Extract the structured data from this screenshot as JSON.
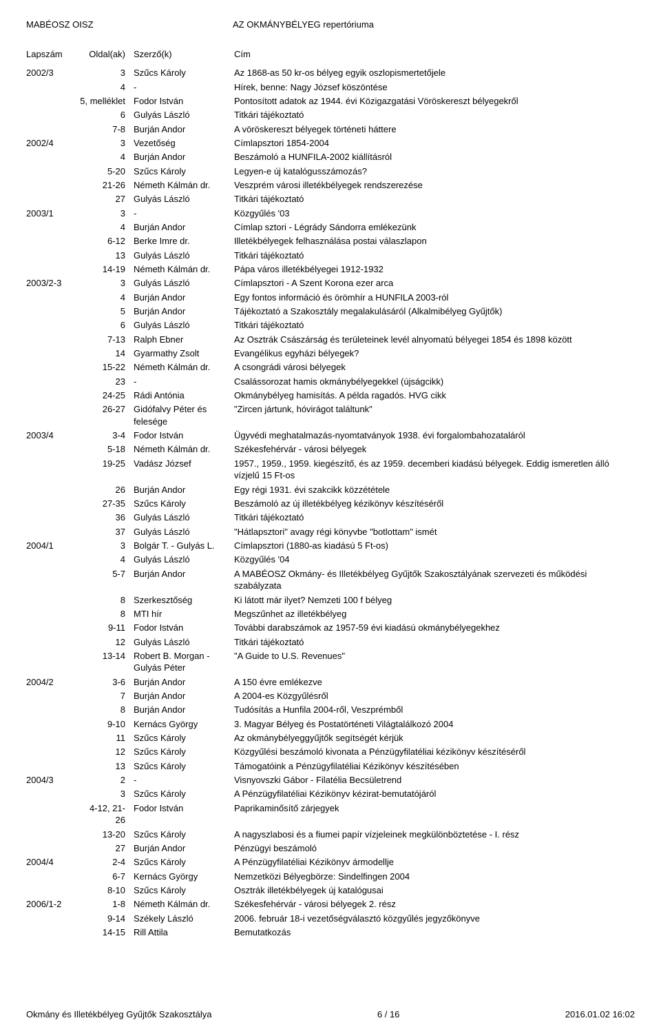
{
  "header": {
    "left": "MABÉOSZ OISZ",
    "right": "AZ OKMÁNYBÉLYEG repertóriuma"
  },
  "columns": {
    "lapszam": "Lapszám",
    "oldal": "Oldal(ak)",
    "szerzo": "Szerző(k)",
    "cim": "Cím"
  },
  "rows": [
    {
      "lapszam": "2002/3",
      "oldal": "3",
      "szerzo": "Szűcs Károly",
      "cim": "Az 1868-as 50 kr-os bélyeg egyik oszlopismertetőjele"
    },
    {
      "lapszam": "",
      "oldal": "4",
      "szerzo": "-",
      "cim": "Hírek, benne: Nagy József köszöntése"
    },
    {
      "lapszam": "",
      "oldal": "5, melléklet",
      "szerzo": "Fodor István",
      "cim": "Pontosított adatok az 1944. évi Közigazgatási Vöröskereszt bélyegekről"
    },
    {
      "lapszam": "",
      "oldal": "6",
      "szerzo": "Gulyás László",
      "cim": "Titkári tájékoztató"
    },
    {
      "lapszam": "",
      "oldal": "7-8",
      "szerzo": "Burján Andor",
      "cim": "A vöröskereszt bélyegek történeti háttere"
    },
    {
      "lapszam": "2002/4",
      "oldal": "3",
      "szerzo": "Vezetőség",
      "cim": "Címlapsztori 1854-2004"
    },
    {
      "lapszam": "",
      "oldal": "4",
      "szerzo": "Burján Andor",
      "cim": "Beszámoló a HUNFILA-2002 kiállításról"
    },
    {
      "lapszam": "",
      "oldal": "5-20",
      "szerzo": "Szűcs Károly",
      "cim": "Legyen-e új katalógusszámozás?"
    },
    {
      "lapszam": "",
      "oldal": "21-26",
      "szerzo": "Németh Kálmán dr.",
      "cim": "Veszprém városi illetékbélyegek rendszerezése"
    },
    {
      "lapszam": "",
      "oldal": "27",
      "szerzo": "Gulyás László",
      "cim": "Titkári tájékoztató"
    },
    {
      "lapszam": "2003/1",
      "oldal": "3",
      "szerzo": "-",
      "cim": "Közgyűlés '03"
    },
    {
      "lapszam": "",
      "oldal": "4",
      "szerzo": "Burján Andor",
      "cim": "Címlap sztori - Légrády Sándorra emlékezünk"
    },
    {
      "lapszam": "",
      "oldal": "6-12",
      "szerzo": "Berke Imre dr.",
      "cim": "Illetékbélyegek felhasználása postai válaszlapon"
    },
    {
      "lapszam": "",
      "oldal": "13",
      "szerzo": "Gulyás László",
      "cim": "Titkári tájékoztató"
    },
    {
      "lapszam": "",
      "oldal": "14-19",
      "szerzo": "Németh Kálmán dr.",
      "cim": "Pápa város illetékbélyegei 1912-1932"
    },
    {
      "lapszam": "2003/2-3",
      "oldal": "3",
      "szerzo": "Gulyás László",
      "cim": "Címlapsztori - A Szent Korona ezer arca"
    },
    {
      "lapszam": "",
      "oldal": "4",
      "szerzo": "Burján Andor",
      "cim": "Egy fontos információ és örömhír a HUNFILA 2003-ról"
    },
    {
      "lapszam": "",
      "oldal": "5",
      "szerzo": "Burján Andor",
      "cim": "Tájékoztató a Szakosztály megalakulásáról (Alkalmibélyeg Gyűjtők)"
    },
    {
      "lapszam": "",
      "oldal": "6",
      "szerzo": "Gulyás László",
      "cim": "Titkári tájékoztató"
    },
    {
      "lapszam": "",
      "oldal": "7-13",
      "szerzo": "Ralph Ebner",
      "cim": "Az Osztrák Császárság és területeinek levél alnyomatú bélyegei 1854 és 1898 között"
    },
    {
      "lapszam": "",
      "oldal": "14",
      "szerzo": "Gyarmathy Zsolt",
      "cim": "Evangélikus egyházi bélyegek?"
    },
    {
      "lapszam": "",
      "oldal": "15-22",
      "szerzo": "Németh Kálmán dr.",
      "cim": "A csongrádi városi bélyegek"
    },
    {
      "lapszam": "",
      "oldal": "23",
      "szerzo": "-",
      "cim": "Csalássorozat hamis okmánybélyegekkel (újságcikk)"
    },
    {
      "lapszam": "",
      "oldal": "24-25",
      "szerzo": "Rádi Antónia",
      "cim": "Okmánybélyeg hamisítás. A példa ragadós. HVG cikk"
    },
    {
      "lapszam": "",
      "oldal": "26-27",
      "szerzo": "Gidófalvy Péter és felesége",
      "cim": "\"Zircen jártunk, hóvirágot találtunk\""
    },
    {
      "lapszam": "2003/4",
      "oldal": "3-4",
      "szerzo": "Fodor István",
      "cim": "Ügyvédi meghatalmazás-nyomtatványok 1938. évi forgalombahozataláról"
    },
    {
      "lapszam": "",
      "oldal": "5-18",
      "szerzo": "Németh Kálmán dr.",
      "cim": "Székesfehérvár - városi bélyegek"
    },
    {
      "lapszam": "",
      "oldal": "19-25",
      "szerzo": "Vadász József",
      "cim": "1957., 1959., 1959. kiegészítő, és az 1959. decemberi kiadású bélyegek. Eddig ismeretlen álló vízjelű 15 Ft-os"
    },
    {
      "lapszam": "",
      "oldal": "26",
      "szerzo": "Burján Andor",
      "cim": "Egy régi 1931. évi szakcikk közzététele"
    },
    {
      "lapszam": "",
      "oldal": "27-35",
      "szerzo": "Szűcs Károly",
      "cim": "Beszámoló az új illetékbélyeg kézikönyv készítéséről"
    },
    {
      "lapszam": "",
      "oldal": "36",
      "szerzo": "Gulyás László",
      "cim": "Titkári tájékoztató"
    },
    {
      "lapszam": "",
      "oldal": "37",
      "szerzo": "Gulyás László",
      "cim": "\"Hátlapsztori\" avagy régi könyvbe \"botlottam\" ismét"
    },
    {
      "lapszam": "2004/1",
      "oldal": "3",
      "szerzo": "Bolgár T. - Gulyás L.",
      "cim": "Címlapsztori (1880-as kiadású 5 Ft-os)"
    },
    {
      "lapszam": "",
      "oldal": "4",
      "szerzo": "Gulyás László",
      "cim": "Közgyűlés '04"
    },
    {
      "lapszam": "",
      "oldal": "5-7",
      "szerzo": "Burján Andor",
      "cim": "A MABÉOSZ Okmány- és Illetékbélyeg Gyűjtők Szakosztályának szervezeti és működési szabályzata"
    },
    {
      "lapszam": "",
      "oldal": "8",
      "szerzo": "Szerkesztőség",
      "cim": "Ki látott már ilyet? Nemzeti 100 f bélyeg"
    },
    {
      "lapszam": "",
      "oldal": "8",
      "szerzo": "MTI hír",
      "cim": "Megszűnhet az illetékbélyeg"
    },
    {
      "lapszam": "",
      "oldal": "9-11",
      "szerzo": "Fodor István",
      "cim": "További darabszámok az 1957-59 évi kiadású okmánybélyegekhez"
    },
    {
      "lapszam": "",
      "oldal": "12",
      "szerzo": "Gulyás László",
      "cim": "Titkári tájékoztató"
    },
    {
      "lapszam": "",
      "oldal": "13-14",
      "szerzo": "Robert B. Morgan - Gulyás Péter",
      "cim": "\"A Guide to U.S. Revenues\""
    },
    {
      "lapszam": "2004/2",
      "oldal": "3-6",
      "szerzo": "Burján Andor",
      "cim": "A 150 évre emlékezve"
    },
    {
      "lapszam": "",
      "oldal": "7",
      "szerzo": "Burján Andor",
      "cim": "A 2004-es Közgyűlésről"
    },
    {
      "lapszam": "",
      "oldal": "8",
      "szerzo": "Burján Andor",
      "cim": "Tudósítás a Hunfila 2004-ről, Veszprémből"
    },
    {
      "lapszam": "",
      "oldal": "9-10",
      "szerzo": "Kernács György",
      "cim": "3. Magyar Bélyeg és Postatörténeti Világtalálkozó 2004"
    },
    {
      "lapszam": "",
      "oldal": "11",
      "szerzo": "Szűcs Károly",
      "cim": "Az okmánybélyeggyűjtők segítségét kérjük"
    },
    {
      "lapszam": "",
      "oldal": "12",
      "szerzo": "Szűcs Károly",
      "cim": "Közgyűlési beszámoló kivonata a Pénzügyfilatéliai kézikönyv készítéséről"
    },
    {
      "lapszam": "",
      "oldal": "13",
      "szerzo": "Szűcs Károly",
      "cim": "Támogatóink a Pénzügyfilatéliai Kézikönyv készítésében"
    },
    {
      "lapszam": "2004/3",
      "oldal": "2",
      "szerzo": "-",
      "cim": "Visnyovszki Gábor - Filatélia Becsületrend"
    },
    {
      "lapszam": "",
      "oldal": "3",
      "szerzo": "Szűcs Károly",
      "cim": "A Pénzügyfilatéliai Kézikönyv kézirat-bemutatójáról"
    },
    {
      "lapszam": "",
      "oldal": "4-12, 21-26",
      "szerzo": "Fodor István",
      "cim": "Paprikaminősítő zárjegyek"
    },
    {
      "lapszam": "",
      "oldal": "13-20",
      "szerzo": "Szűcs Károly",
      "cim": "A nagyszlabosi és a fiumei papír vízjeleinek megkülönböztetése - I. rész"
    },
    {
      "lapszam": "",
      "oldal": "27",
      "szerzo": "Burján Andor",
      "cim": "Pénzügyi beszámoló"
    },
    {
      "lapszam": "2004/4",
      "oldal": "2-4",
      "szerzo": "Szűcs Károly",
      "cim": "A Pénzügyfilatéliai Kézikönyv ármodellje"
    },
    {
      "lapszam": "",
      "oldal": "6-7",
      "szerzo": "Kernács György",
      "cim": "Nemzetközi Bélyegbörze: Sindelfingen 2004"
    },
    {
      "lapszam": "",
      "oldal": "8-10",
      "szerzo": "Szűcs Károly",
      "cim": "Osztrák illetékbélyegek új katalógusai"
    },
    {
      "lapszam": "2006/1-2",
      "oldal": "1-8",
      "szerzo": "Németh Kálmán dr.",
      "cim": "Székesfehérvár - városi bélyegek 2. rész"
    },
    {
      "lapszam": "",
      "oldal": "9-14",
      "szerzo": "Székely László",
      "cim": "2006. február 18-i vezetőségválasztó közgyűlés jegyzőkönyve"
    },
    {
      "lapszam": "",
      "oldal": "14-15",
      "szerzo": "Rill Attila",
      "cim": "Bemutatkozás"
    }
  ],
  "footer": {
    "left": "Okmány és Illetékbélyeg Gyűjtők Szakosztálya",
    "center": "6 / 16",
    "right": "2016.01.02 16:02"
  }
}
